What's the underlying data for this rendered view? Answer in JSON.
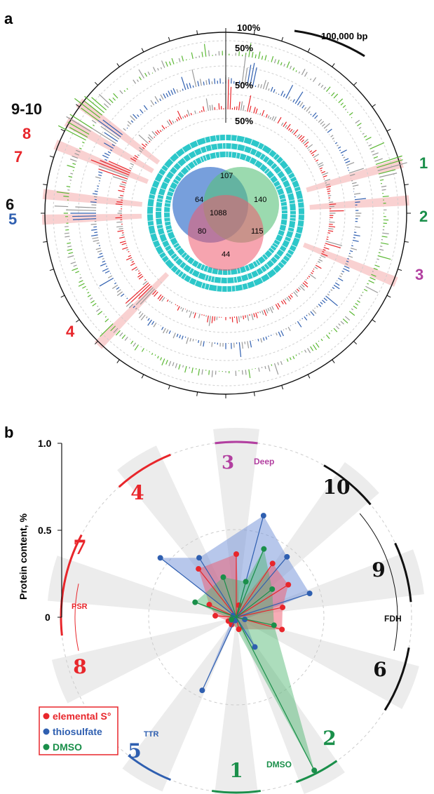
{
  "colors": {
    "red": "#e8262b",
    "blue": "#2f5fb0",
    "green": "#1a8f4a",
    "magenta": "#b23fa0",
    "black": "#111111",
    "grey": "#999999",
    "cyan": "#2cc7c9",
    "lime": "#5bb834",
    "pink": "#f7c6c6",
    "lightgrey": "#e9e9e9"
  },
  "panel_a": {
    "letter": "a",
    "scale_bar": "100,000 bp",
    "ring_pct": [
      "100%",
      "50%",
      "50%",
      "50%"
    ],
    "regions": [
      {
        "label": "1",
        "color": "#1a8f4a"
      },
      {
        "label": "2",
        "color": "#1a8f4a"
      },
      {
        "label": "3",
        "color": "#b23fa0"
      },
      {
        "label": "4",
        "color": "#e8262b"
      },
      {
        "label": "5",
        "color": "#2f5fb0"
      },
      {
        "label": "6",
        "color": "#111111"
      },
      {
        "label": "7",
        "color": "#e8262b"
      },
      {
        "label": "8",
        "color": "#e8262b"
      },
      {
        "label": "9-10",
        "color": "#111111"
      }
    ],
    "venn": {
      "only_blue": "64",
      "blue_green": "107",
      "only_green": "140",
      "center": "1088",
      "blue_red": "80",
      "green_red": "115",
      "only_red": "44"
    }
  },
  "chart_data": [
    {
      "type": "radar",
      "panel": "b",
      "ylabel": "Protein content, %",
      "ylim": [
        0,
        1.0
      ],
      "yticks": [
        "1.0",
        "0.5",
        "0"
      ],
      "sectors": [
        "1",
        "2",
        "3",
        "4",
        "5",
        "6",
        "7",
        "8",
        "9",
        "10"
      ],
      "group_labels": [
        {
          "name": "Deep",
          "color": "#b23fa0"
        },
        {
          "name": "PSR",
          "color": "#e8262b"
        },
        {
          "name": "FDH",
          "color": "#111111"
        },
        {
          "name": "TTR",
          "color": "#2f5fb0"
        },
        {
          "name": "DMSO",
          "color": "#1a8f4a"
        }
      ],
      "legend": {
        "placement": "bottom-left"
      },
      "series": [
        {
          "name": "elemental S°",
          "color": "#e8262b",
          "points": [
            [
              12,
              0.07
            ],
            [
              34,
              0.37
            ],
            [
              58,
              0.35
            ],
            [
              78,
              0.27
            ],
            [
              105,
              0.27
            ],
            [
              168,
              0.07
            ],
            [
              212,
              0.05
            ],
            [
              244,
              0.05
            ],
            [
              274,
              0.12
            ],
            [
              295,
              0.17
            ],
            [
              322,
              0.35
            ],
            [
              0,
              0.36
            ]
          ]
        },
        {
          "name": "thiosulfate",
          "color": "#2f5fb0",
          "points": [
            [
              15,
              0.6
            ],
            [
              40,
              0.45
            ],
            [
              72,
              0.44
            ],
            [
              104,
              0.05
            ],
            [
              148,
              0.2
            ],
            [
              197,
              0.02
            ],
            [
              205,
              0.46
            ],
            [
              240,
              0.03
            ],
            [
              296,
              0.02
            ],
            [
              308,
              0.55
            ],
            [
              328,
              0.4
            ]
          ]
        },
        {
          "name": "DMSO",
          "color": "#1a8f4a",
          "points": [
            [
              22,
              0.42
            ],
            [
              52,
              0.26
            ],
            [
              102,
              0.22
            ],
            [
              153,
              0.98
            ],
            [
              245,
              0.03
            ],
            [
              290,
              0.25
            ],
            [
              342,
              0.24
            ],
            [
              15,
              0.21
            ]
          ]
        }
      ]
    }
  ]
}
